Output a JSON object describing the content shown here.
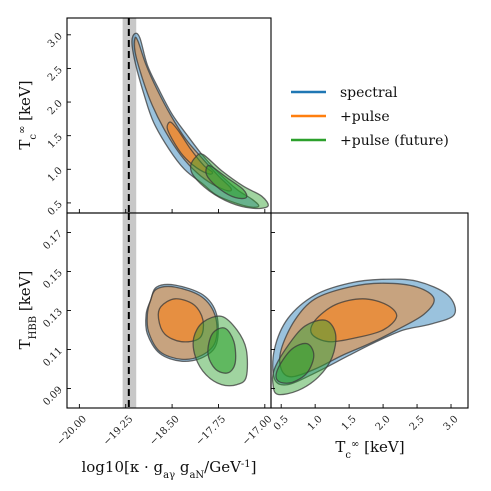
{
  "chart_data": {
    "type": "corner",
    "parameters": [
      {
        "key": "g",
        "label": "log10[κ · g_aγ g_aN/GeV^-1]",
        "range": [
          -20.2,
          -16.9
        ],
        "ticks": [
          -20.0,
          -19.25,
          -18.5,
          -17.75,
          -17.0
        ],
        "tick_labels": [
          "−20.00",
          "−19.25",
          "−18.50",
          "−17.75",
          "−17.00"
        ]
      },
      {
        "key": "Tc",
        "label": "T_c^∞ [keV]",
        "range": [
          0.35,
          3.25
        ],
        "ticks": [
          0.5,
          1.0,
          1.5,
          2.0,
          2.5,
          3.0
        ],
        "tick_labels": [
          "0.5",
          "1.0",
          "1.5",
          "2.0",
          "2.5",
          "3.0"
        ]
      },
      {
        "key": "Thbb",
        "label": "T_HBB [keV]",
        "range": [
          0.08,
          0.18
        ],
        "ticks": [
          0.09,
          0.11,
          0.13,
          0.15,
          0.17
        ],
        "tick_labels": [
          "0.09",
          "0.11",
          "0.13",
          "0.15",
          "0.17"
        ]
      }
    ],
    "reference_line": {
      "g": -19.2,
      "band": [
        -19.3,
        -19.08
      ]
    },
    "series": [
      {
        "name": "spectral",
        "color": "#1f77b4"
      },
      {
        "name": "+pulse",
        "color": "#ff7f0e"
      },
      {
        "name": "+pulse (future)",
        "color": "#2ca02c"
      }
    ],
    "contours": {
      "g_Tc": [
        {
          "series": 0,
          "level": "outer",
          "points": [
            [
              -19.1,
              3.02
            ],
            [
              -19.02,
              2.95
            ],
            [
              -18.9,
              2.55
            ],
            [
              -18.72,
              2.2
            ],
            [
              -18.5,
              1.82
            ],
            [
              -18.25,
              1.5
            ],
            [
              -18.0,
              1.2
            ],
            [
              -17.75,
              0.95
            ],
            [
              -17.45,
              0.7
            ],
            [
              -17.2,
              0.55
            ],
            [
              -17.1,
              0.45
            ],
            [
              -17.3,
              0.45
            ],
            [
              -17.75,
              0.6
            ],
            [
              -18.0,
              0.78
            ],
            [
              -18.3,
              1.0
            ],
            [
              -18.55,
              1.3
            ],
            [
              -18.8,
              1.7
            ],
            [
              -18.95,
              2.1
            ],
            [
              -19.1,
              2.6
            ],
            [
              -19.15,
              2.9
            ]
          ]
        },
        {
          "series": 1,
          "level": "outer",
          "points": [
            [
              -19.1,
              2.95
            ],
            [
              -19.05,
              2.9
            ],
            [
              -18.92,
              2.55
            ],
            [
              -18.75,
              2.2
            ],
            [
              -18.52,
              1.8
            ],
            [
              -18.28,
              1.45
            ],
            [
              -18.0,
              1.15
            ],
            [
              -17.75,
              0.9
            ],
            [
              -17.55,
              0.72
            ],
            [
              -17.6,
              0.68
            ],
            [
              -17.85,
              0.78
            ],
            [
              -18.1,
              0.95
            ],
            [
              -18.35,
              1.2
            ],
            [
              -18.6,
              1.55
            ],
            [
              -18.82,
              1.95
            ],
            [
              -18.98,
              2.35
            ],
            [
              -19.1,
              2.75
            ]
          ]
        },
        {
          "series": 1,
          "level": "inner",
          "points": [
            [
              -18.52,
              1.7
            ],
            [
              -18.38,
              1.55
            ],
            [
              -18.2,
              1.3
            ],
            [
              -17.98,
              1.05
            ],
            [
              -17.85,
              0.96
            ],
            [
              -17.9,
              0.93
            ],
            [
              -18.1,
              1.02
            ],
            [
              -18.32,
              1.2
            ],
            [
              -18.5,
              1.45
            ],
            [
              -18.58,
              1.62
            ]
          ]
        },
        {
          "series": 2,
          "level": "outer",
          "points": [
            [
              -18.0,
              1.22
            ],
            [
              -17.7,
              0.98
            ],
            [
              -17.35,
              0.75
            ],
            [
              -17.05,
              0.6
            ],
            [
              -16.95,
              0.45
            ],
            [
              -17.2,
              0.42
            ],
            [
              -17.55,
              0.5
            ],
            [
              -17.9,
              0.68
            ],
            [
              -18.15,
              0.9
            ],
            [
              -18.2,
              1.05
            ],
            [
              -18.12,
              1.18
            ]
          ]
        },
        {
          "series": 2,
          "level": "inner",
          "points": [
            [
              -17.88,
              1.05
            ],
            [
              -17.62,
              0.88
            ],
            [
              -17.35,
              0.7
            ],
            [
              -17.3,
              0.58
            ],
            [
              -17.48,
              0.58
            ],
            [
              -17.72,
              0.7
            ],
            [
              -17.92,
              0.88
            ],
            [
              -17.95,
              1.0
            ]
          ]
        }
      ],
      "g_Thbb": [
        {
          "series": 0,
          "level": "outer",
          "points": [
            [
              -18.85,
              0.135
            ],
            [
              -18.75,
              0.142
            ],
            [
              -18.45,
              0.143
            ],
            [
              -18.0,
              0.138
            ],
            [
              -17.78,
              0.128
            ],
            [
              -17.78,
              0.113
            ],
            [
              -18.0,
              0.106
            ],
            [
              -18.35,
              0.104
            ],
            [
              -18.7,
              0.108
            ],
            [
              -18.9,
              0.118
            ],
            [
              -18.92,
              0.128
            ]
          ]
        },
        {
          "series": 1,
          "level": "outer",
          "points": [
            [
              -18.85,
              0.135
            ],
            [
              -18.75,
              0.141
            ],
            [
              -18.45,
              0.142
            ],
            [
              -18.02,
              0.137
            ],
            [
              -17.8,
              0.127
            ],
            [
              -17.8,
              0.114
            ],
            [
              -18.02,
              0.107
            ],
            [
              -18.35,
              0.105
            ],
            [
              -18.7,
              0.109
            ],
            [
              -18.88,
              0.119
            ],
            [
              -18.9,
              0.128
            ]
          ]
        },
        {
          "series": 1,
          "level": "inner",
          "points": [
            [
              -18.68,
              0.132
            ],
            [
              -18.45,
              0.136
            ],
            [
              -18.15,
              0.133
            ],
            [
              -18.0,
              0.125
            ],
            [
              -18.05,
              0.116
            ],
            [
              -18.35,
              0.114
            ],
            [
              -18.62,
              0.118
            ],
            [
              -18.72,
              0.126
            ]
          ]
        },
        {
          "series": 2,
          "level": "outer",
          "points": [
            [
              -18.0,
              0.124
            ],
            [
              -17.7,
              0.127
            ],
            [
              -17.45,
              0.12
            ],
            [
              -17.3,
              0.11
            ],
            [
              -17.3,
              0.096
            ],
            [
              -17.45,
              0.092
            ],
            [
              -17.7,
              0.092
            ],
            [
              -17.95,
              0.097
            ],
            [
              -18.12,
              0.106
            ],
            [
              -18.15,
              0.116
            ]
          ]
        },
        {
          "series": 2,
          "level": "inner",
          "points": [
            [
              -17.85,
              0.118
            ],
            [
              -17.65,
              0.121
            ],
            [
              -17.5,
              0.114
            ],
            [
              -17.48,
              0.103
            ],
            [
              -17.6,
              0.098
            ],
            [
              -17.8,
              0.1
            ],
            [
              -17.92,
              0.108
            ]
          ]
        }
      ],
      "Tc_Thbb": [
        {
          "series": 0,
          "level": "outer",
          "points": [
            [
              0.4,
              0.11
            ],
            [
              0.6,
              0.126
            ],
            [
              1.0,
              0.138
            ],
            [
              1.5,
              0.144
            ],
            [
              2.0,
              0.146
            ],
            [
              2.5,
              0.145
            ],
            [
              2.95,
              0.138
            ],
            [
              3.05,
              0.128
            ],
            [
              2.7,
              0.123
            ],
            [
              2.3,
              0.12
            ],
            [
              1.9,
              0.114
            ],
            [
              1.5,
              0.107
            ],
            [
              1.0,
              0.098
            ],
            [
              0.6,
              0.092
            ],
            [
              0.4,
              0.095
            ]
          ]
        },
        {
          "series": 1,
          "level": "outer",
          "points": [
            [
              0.5,
              0.11
            ],
            [
              0.7,
              0.125
            ],
            [
              1.0,
              0.136
            ],
            [
              1.5,
              0.142
            ],
            [
              2.0,
              0.144
            ],
            [
              2.5,
              0.142
            ],
            [
              2.75,
              0.136
            ],
            [
              2.6,
              0.128
            ],
            [
              2.2,
              0.12
            ],
            [
              1.8,
              0.113
            ],
            [
              1.4,
              0.107
            ],
            [
              1.0,
              0.1
            ],
            [
              0.65,
              0.096
            ],
            [
              0.5,
              0.1
            ]
          ]
        },
        {
          "series": 1,
          "level": "inner",
          "points": [
            [
              1.0,
              0.125
            ],
            [
              1.3,
              0.133
            ],
            [
              1.7,
              0.136
            ],
            [
              2.05,
              0.133
            ],
            [
              2.2,
              0.127
            ],
            [
              2.0,
              0.12
            ],
            [
              1.6,
              0.116
            ],
            [
              1.2,
              0.114
            ],
            [
              0.95,
              0.118
            ]
          ]
        },
        {
          "series": 2,
          "level": "outer",
          "points": [
            [
              0.4,
              0.1
            ],
            [
              0.6,
              0.112
            ],
            [
              0.85,
              0.122
            ],
            [
              1.15,
              0.125
            ],
            [
              1.3,
              0.118
            ],
            [
              1.25,
              0.106
            ],
            [
              1.05,
              0.096
            ],
            [
              0.75,
              0.089
            ],
            [
              0.45,
              0.087
            ],
            [
              0.38,
              0.092
            ]
          ]
        },
        {
          "series": 2,
          "level": "inner",
          "points": [
            [
              0.45,
              0.1
            ],
            [
              0.65,
              0.11
            ],
            [
              0.88,
              0.113
            ],
            [
              0.98,
              0.107
            ],
            [
              0.88,
              0.098
            ],
            [
              0.65,
              0.093
            ],
            [
              0.45,
              0.094
            ]
          ]
        }
      ]
    }
  }
}
